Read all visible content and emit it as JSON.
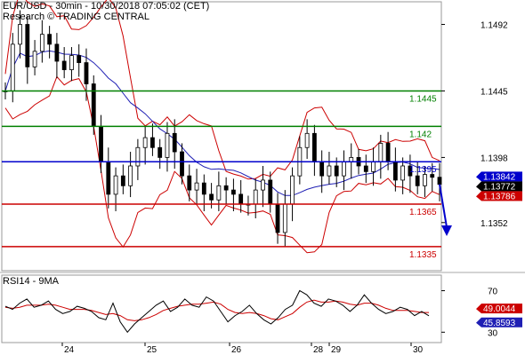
{
  "header": {
    "line1": "EUR/USD - 30min - 10/30/2018 07:05:02 (CET)",
    "line2": "Research © TRADING CENTRAL"
  },
  "colors": {
    "price": "#000000",
    "bollinger": "#cc0000",
    "ma": "#1f1fb4",
    "resistance": "#008000",
    "pivot": "#0000cc",
    "support": "#cc0000",
    "arrow": "#0000cc",
    "rsi": "#000000",
    "rsi_ma": "#cc0000"
  },
  "chart_data": [
    {
      "type": "candlestick",
      "title": "EUR/USD - 30min - 10/30/2018 07:05:02 (CET)",
      "x_tick_labels": [
        "24",
        "25",
        "26",
        "28",
        "29",
        "30"
      ],
      "y_tick_labels": [
        1.1492,
        1.1445,
        1.1398,
        1.1352
      ],
      "ylim": [
        1.1318,
        1.1508
      ],
      "levels": [
        {
          "label": "1.1445",
          "value": 1.1445,
          "kind": "resistance"
        },
        {
          "label": "1.142",
          "value": 1.142,
          "kind": "resistance"
        },
        {
          "label": "1.1395",
          "value": 1.1395,
          "kind": "pivot"
        },
        {
          "label": "1.1365",
          "value": 1.1365,
          "kind": "support"
        },
        {
          "label": "1.1335",
          "value": 1.1335,
          "kind": "support"
        }
      ],
      "price_badges": [
        {
          "label": "1.13842",
          "value": 1.13842
        },
        {
          "label": "1.13772",
          "value": 1.13772
        },
        {
          "label": "1.13786",
          "value": 1.13786
        }
      ],
      "close_path": [
        1.1445,
        1.1478,
        1.1492,
        1.1462,
        1.1473,
        1.1485,
        1.1478,
        1.1466,
        1.146,
        1.147,
        1.1465,
        1.145,
        1.142,
        1.1395,
        1.1372,
        1.1385,
        1.1378,
        1.1392,
        1.1405,
        1.1412,
        1.1405,
        1.1398,
        1.1415,
        1.1402,
        1.1385,
        1.1375,
        1.138,
        1.1372,
        1.1368,
        1.1378,
        1.1375,
        1.1372,
        1.1365,
        1.1365,
        1.1375,
        1.1382,
        1.1365,
        1.1345,
        1.1365,
        1.1385,
        1.1405,
        1.1415,
        1.1395,
        1.1385,
        1.1392,
        1.1385,
        1.1395,
        1.1398,
        1.1392,
        1.1388,
        1.1395,
        1.1408,
        1.1395,
        1.1382,
        1.1392,
        1.1385,
        1.1378,
        1.1386,
        1.1384,
        1.1379
      ],
      "projection": {
        "from": 1.1379,
        "to": 1.1345
      }
    },
    {
      "type": "line",
      "title": "RSI14 - 9MA",
      "y_tick_labels": [
        70,
        30
      ],
      "ylim": [
        20,
        85
      ],
      "series": [
        {
          "name": "RSI14",
          "values": [
            55,
            52,
            58,
            62,
            54,
            56,
            60,
            52,
            48,
            50,
            55,
            53,
            50,
            44,
            42,
            58,
            40,
            30,
            38,
            44,
            50,
            56,
            60,
            50,
            54,
            62,
            56,
            54,
            64,
            60,
            50,
            40,
            46,
            50,
            56,
            48,
            42,
            38,
            44,
            52,
            56,
            70,
            66,
            58,
            55,
            62,
            60,
            56,
            50,
            56,
            66,
            58,
            52,
            48,
            50,
            54,
            52,
            46,
            50,
            45.8593
          ]
        },
        {
          "name": "9MA",
          "values": [
            54,
            53,
            54,
            56,
            56,
            56,
            57,
            56,
            54,
            52,
            52,
            52,
            51,
            49,
            47,
            48,
            46,
            42,
            41,
            42,
            44,
            47,
            51,
            53,
            55,
            56,
            57,
            57,
            58,
            59,
            57,
            52,
            49,
            48,
            49,
            48,
            46,
            43,
            42,
            45,
            48,
            54,
            59,
            61,
            59,
            59,
            60,
            59,
            57,
            56,
            58,
            58,
            56,
            53,
            51,
            51,
            51,
            50,
            49,
            49.0044
          ]
        }
      ],
      "value_badges": [
        {
          "label": "49.0044",
          "value": 49.0044
        },
        {
          "label": "45.8593",
          "value": 45.8593
        }
      ]
    }
  ]
}
